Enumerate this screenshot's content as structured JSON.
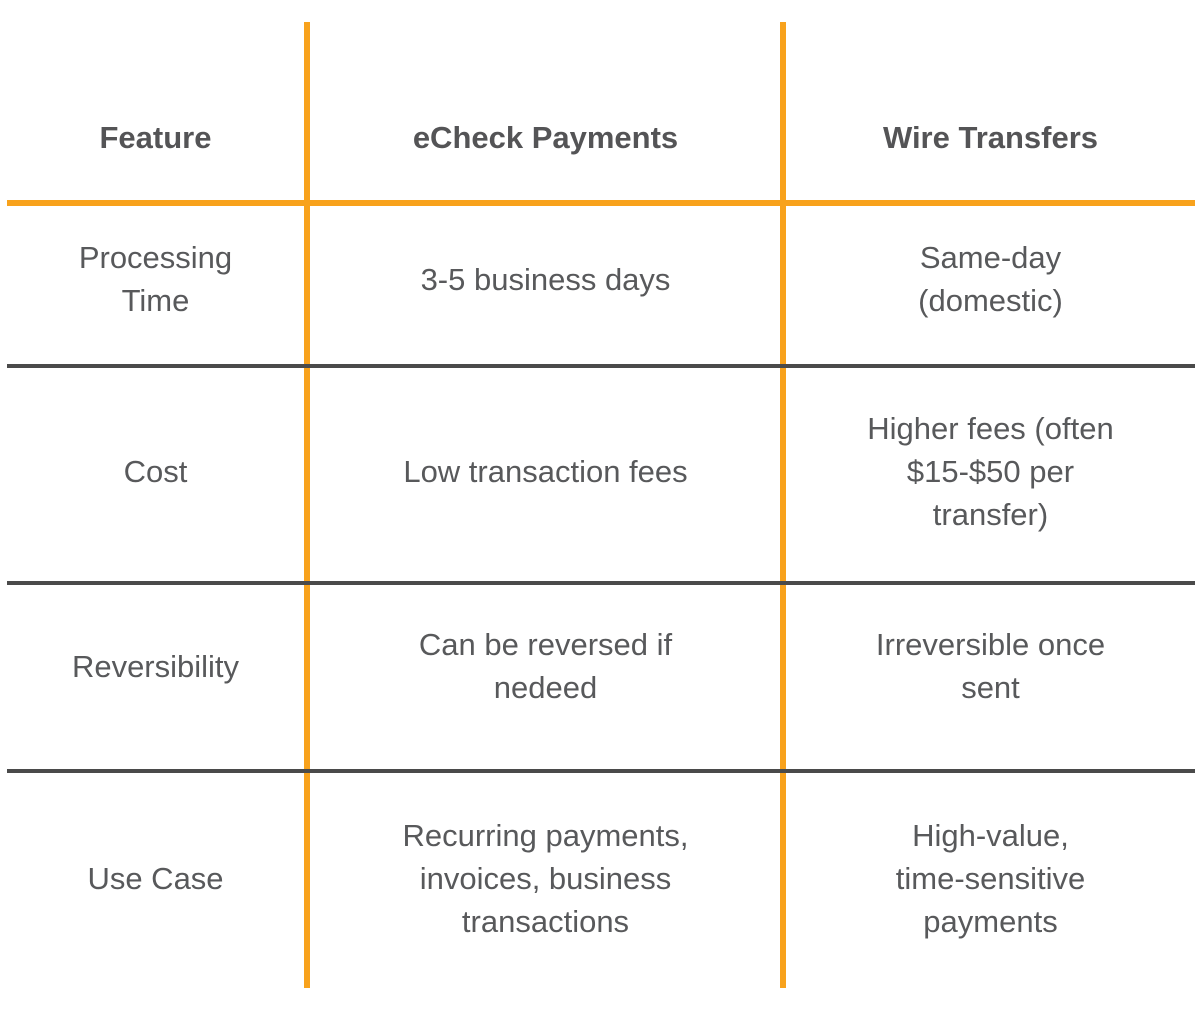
{
  "title": "eCheck Payments vs Wire Transfers comparison table",
  "colors": {
    "accent_orange": "#F8A21C",
    "divider_gray": "#4A4A4A",
    "header_text": "#545456",
    "body_text": "#58595B",
    "background": "#FFFFFF"
  },
  "table": {
    "columns": [
      {
        "label": "Feature"
      },
      {
        "label": "eCheck Payments"
      },
      {
        "label": "Wire Transfers"
      }
    ],
    "rows": [
      {
        "feature": [
          "Processing",
          "Time"
        ],
        "echeck": [
          "3-5 business days"
        ],
        "wire": [
          "Same-day",
          "(domestic)"
        ]
      },
      {
        "feature": [
          "Cost"
        ],
        "echeck": [
          "Low transaction fees"
        ],
        "wire": [
          "Higher fees (often",
          "$15-$50 per",
          "transfer)"
        ]
      },
      {
        "feature": [
          "Reversibility"
        ],
        "echeck": [
          "Can be reversed if",
          "nedeed"
        ],
        "wire": [
          "Irreversible once",
          "sent"
        ]
      },
      {
        "feature": [
          "Use Case"
        ],
        "echeck": [
          "Recurring payments,",
          "invoices, business",
          "transactions"
        ],
        "wire": [
          "High-value,",
          "time-sensitive",
          "payments"
        ]
      }
    ]
  }
}
